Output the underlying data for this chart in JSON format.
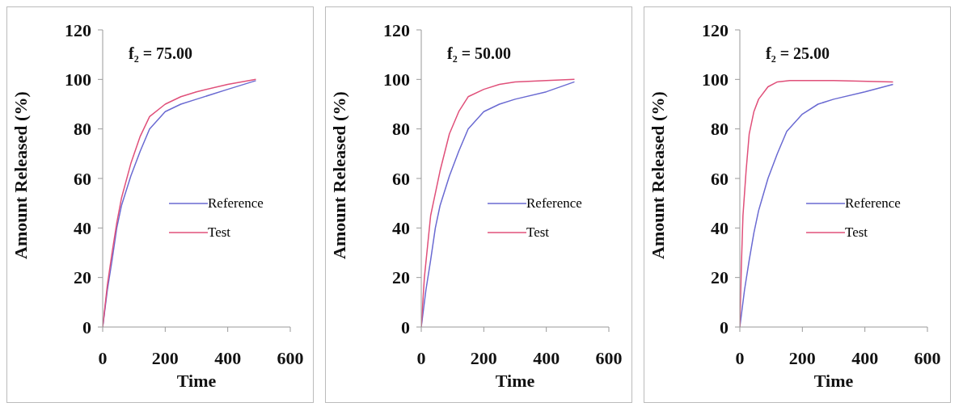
{
  "chart_data": [
    {
      "type": "line",
      "annotations": [
        "f₂ = 75.00"
      ],
      "xlabel": "Time",
      "ylabel": "Amount Released (%)",
      "xlim": [
        0,
        600
      ],
      "xticks": [
        0,
        200,
        400,
        600
      ],
      "ylim": [
        0,
        120
      ],
      "yticks": [
        0,
        20,
        40,
        60,
        80,
        100,
        120
      ],
      "grid": false,
      "legend": "right",
      "marker": "none",
      "line_style": "solid",
      "series": [
        {
          "name": "Reference",
          "color": "#6a6ad2",
          "x": [
            0,
            15,
            30,
            45,
            60,
            90,
            120,
            150,
            200,
            250,
            300,
            400,
            490
          ],
          "values": [
            0,
            15,
            27,
            40,
            49,
            61,
            71,
            80,
            87,
            90,
            92,
            96,
            99.5
          ]
        },
        {
          "name": "Test",
          "color": "#e0507a",
          "x": [
            0,
            15,
            30,
            45,
            60,
            90,
            120,
            150,
            200,
            250,
            300,
            400,
            490
          ],
          "values": [
            0,
            17,
            30,
            42,
            52,
            66,
            77,
            85,
            90,
            93,
            95,
            98,
            100
          ]
        }
      ]
    },
    {
      "type": "line",
      "annotations": [
        "f₂ = 50.00"
      ],
      "xlabel": "Time",
      "ylabel": "Amount Released (%)",
      "xlim": [
        0,
        600
      ],
      "xticks": [
        0,
        200,
        400,
        600
      ],
      "ylim": [
        0,
        120
      ],
      "yticks": [
        0,
        20,
        40,
        60,
        80,
        100,
        120
      ],
      "grid": false,
      "legend": "right",
      "marker": "none",
      "line_style": "solid",
      "series": [
        {
          "name": "Reference",
          "color": "#6a6ad2",
          "x": [
            0,
            15,
            30,
            45,
            60,
            90,
            120,
            150,
            200,
            250,
            300,
            400,
            490
          ],
          "values": [
            0,
            15,
            27,
            40,
            49,
            61,
            71,
            80,
            87,
            90,
            92,
            95,
            99
          ]
        },
        {
          "name": "Test",
          "color": "#e0507a",
          "x": [
            0,
            10,
            30,
            60,
            90,
            120,
            150,
            200,
            250,
            300,
            400,
            490
          ],
          "values": [
            0,
            20,
            45,
            63,
            78,
            87,
            93,
            96,
            98,
            99,
            99.5,
            100
          ]
        }
      ]
    },
    {
      "type": "line",
      "annotations": [
        "f₂ = 25.00"
      ],
      "xlabel": "Time",
      "ylabel": "Amount Released (%)",
      "xlim": [
        0,
        600
      ],
      "xticks": [
        0,
        200,
        400,
        600
      ],
      "ylim": [
        0,
        120
      ],
      "yticks": [
        0,
        20,
        40,
        60,
        80,
        100,
        120
      ],
      "grid": false,
      "legend": "right",
      "marker": "none",
      "line_style": "solid",
      "series": [
        {
          "name": "Reference",
          "color": "#6a6ad2",
          "x": [
            0,
            15,
            30,
            45,
            60,
            90,
            120,
            150,
            200,
            250,
            300,
            400,
            490
          ],
          "values": [
            0,
            15,
            27,
            38,
            47,
            60,
            70,
            79,
            86,
            90,
            92,
            95,
            98
          ]
        },
        {
          "name": "Test",
          "color": "#e0507a",
          "x": [
            0,
            5,
            10,
            20,
            30,
            45,
            60,
            90,
            120,
            160,
            300,
            490
          ],
          "values": [
            0,
            25,
            45,
            63,
            78,
            87,
            92,
            97,
            99,
            99.5,
            99.5,
            99
          ]
        }
      ]
    }
  ]
}
